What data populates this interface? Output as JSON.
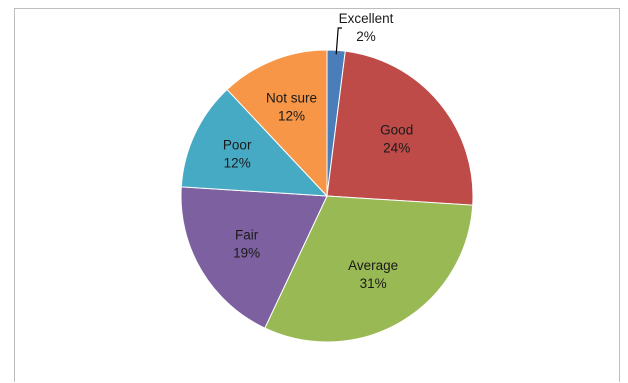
{
  "chart_data": {
    "type": "pie",
    "title": "",
    "legend": "none",
    "slices": [
      {
        "label": "Excellent",
        "value": 2,
        "display": "2%",
        "color": "#4a7ebb"
      },
      {
        "label": "Good",
        "value": 24,
        "display": "24%",
        "color": "#be4b48"
      },
      {
        "label": "Average",
        "value": 31,
        "display": "31%",
        "color": "#98b954"
      },
      {
        "label": "Fair",
        "value": 19,
        "display": "19%",
        "color": "#7d60a0"
      },
      {
        "label": "Poor",
        "value": 12,
        "display": "12%",
        "color": "#46aac5"
      },
      {
        "label": "Not sure",
        "value": 12,
        "display": "12%",
        "color": "#f69646"
      }
    ]
  }
}
